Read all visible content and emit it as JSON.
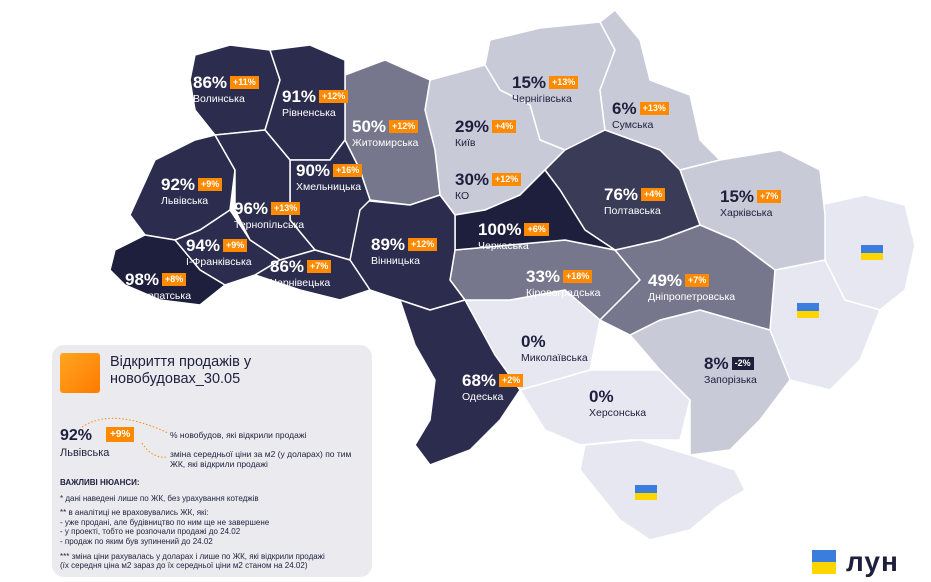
{
  "colors": {
    "dark_navy": "#1e1f3d",
    "navy": "#2b2c4e",
    "slate": "#3a3b57",
    "mid_gray": "#76778c",
    "light_gray": "#c9cad8",
    "pale": "#e6e7f0",
    "accent_orange": "#ff8a00",
    "negative_badge": "#1e1f3d"
  },
  "regions": [
    {
      "id": "volynska",
      "name": "Волинська",
      "pct": "86%",
      "change": "+11%"
    },
    {
      "id": "rivnenska",
      "name": "Рівненська",
      "pct": "91%",
      "change": "+12%"
    },
    {
      "id": "zhytomyrska",
      "name": "Житомирська",
      "pct": "50%",
      "change": "+12%"
    },
    {
      "id": "kyiv",
      "name": "Київ",
      "pct": "29%",
      "change": "+4%"
    },
    {
      "id": "chernihivska",
      "name": "Чернігівська",
      "pct": "15%",
      "change": "+13%"
    },
    {
      "id": "sumska",
      "name": "Сумська",
      "pct": "6%",
      "change": "+13%"
    },
    {
      "id": "ko",
      "name": "КО",
      "pct": "30%",
      "change": "+12%"
    },
    {
      "id": "khmelnytska",
      "name": "Хмельницька",
      "pct": "90%",
      "change": "+16%"
    },
    {
      "id": "lvivska",
      "name": "Львівська",
      "pct": "92%",
      "change": "+9%"
    },
    {
      "id": "ternopilska",
      "name": "Тернопільська",
      "pct": "96%",
      "change": "+13%"
    },
    {
      "id": "poltavska",
      "name": "Полтавська",
      "pct": "76%",
      "change": "+4%"
    },
    {
      "id": "kharkivska",
      "name": "Харківська",
      "pct": "15%",
      "change": "+7%"
    },
    {
      "id": "ifrankivska",
      "name": "І-Франківська",
      "pct": "94%",
      "change": "+9%"
    },
    {
      "id": "cherkaska",
      "name": "Черкаська",
      "pct": "100%",
      "change": "+6%"
    },
    {
      "id": "vinnytska",
      "name": "Вінницька",
      "pct": "89%",
      "change": "+12%"
    },
    {
      "id": "chernivetska",
      "name": "Чернівецька",
      "pct": "86%",
      "change": "+7%"
    },
    {
      "id": "zakarpatska",
      "name": "Закарпатська",
      "pct": "98%",
      "change": "+8%"
    },
    {
      "id": "kirovohradska",
      "name": "Кіровоградська",
      "pct": "33%",
      "change": "+18%"
    },
    {
      "id": "dnipropetrovska",
      "name": "Дніпропетровська",
      "pct": "49%",
      "change": "+7%"
    },
    {
      "id": "mykolaivska",
      "name": "Миколаївська",
      "pct": "0%",
      "change": ""
    },
    {
      "id": "zaporizka",
      "name": "Запорізька",
      "pct": "8%",
      "change": "-2%"
    },
    {
      "id": "odeska",
      "name": "Одеська",
      "pct": "68%",
      "change": "+2%"
    },
    {
      "id": "khersonska",
      "name": "Херсонська",
      "pct": "0%",
      "change": ""
    }
  ],
  "flags": [
    {
      "icon": "ukraine-flag-icon",
      "colors": [
        "#3b7ddd",
        "#ffd500"
      ]
    },
    {
      "icon": "ukraine-flag-icon",
      "colors": [
        "#3b7ddd",
        "#ffd500"
      ]
    },
    {
      "icon": "ukraine-flag-icon",
      "colors": [
        "#3b7ddd",
        "#ffd500"
      ]
    }
  ],
  "legend": {
    "title": "Відкриття продажів у новобудовах_30.05",
    "example_pct": "92%",
    "example_change": "+9%",
    "example_region": "Львівська",
    "note_pct": "% новобудов, які відкрили продажі",
    "note_change": "зміна середньої ціни за м2 (у доларах) по тим ЖК, які відкрили продажі",
    "notes_heading": "ВАЖЛИВІ НЮАНСИ:",
    "notes": [
      "* дані наведені лише по ЖК, без урахування котеджів",
      "** в аналітиці не враховувались ЖК, які:\n- уже продані, але будівництво по ним ще не завершене\n- у проекті, тобто не розпочали продажі до 24.02\n- продаж по яким був зупинений до 24.02",
      "*** зміна ціни рахувалась у доларах і лише по ЖК, які відкрили продажі\n(їх середня ціна м2 зараз до їх середньої ціни м2  станом на 24.02)"
    ]
  },
  "logo": {
    "text": "лун",
    "icon": "lun-logo-icon",
    "colors": [
      "#3b7ddd",
      "#ffd500"
    ]
  }
}
